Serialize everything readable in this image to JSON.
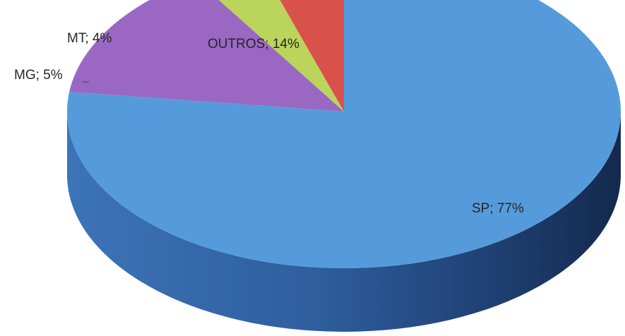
{
  "chart_data": {
    "type": "pie",
    "title": "",
    "legend": "none",
    "slices": [
      {
        "name": "SP",
        "value": 77,
        "label": "SP; 77%",
        "color": "#559BDB"
      },
      {
        "name": "OUTROS",
        "value": 14,
        "label": "OUTROS; 14%",
        "color": "#9A68C3"
      },
      {
        "name": "MT",
        "value": 4,
        "label": "MT; 4%",
        "color": "#BBD55C"
      },
      {
        "name": "MG",
        "value": 5,
        "label": "MG; 5%",
        "color": "#D9514B"
      }
    ]
  }
}
